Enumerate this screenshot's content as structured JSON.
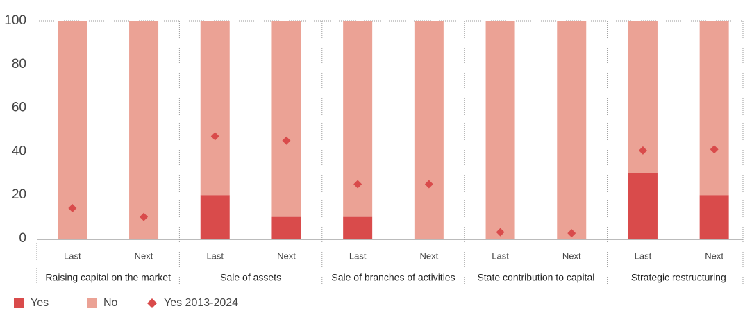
{
  "chart_data": {
    "type": "bar",
    "stacked": true,
    "categories": [
      "Last",
      "Next",
      "Last",
      "Next",
      "Last",
      "Next",
      "Last",
      "Next",
      "Last",
      "Next"
    ],
    "groups": [
      "Raising capital on the market",
      "Sale of assets",
      "Sale of branches of activities",
      "State contribution to capital",
      "Strategic restructuring"
    ],
    "series": [
      {
        "name": "Yes",
        "color": "#d94b4b",
        "values": [
          0,
          0,
          20,
          10,
          10,
          0,
          0,
          0,
          30,
          20
        ]
      },
      {
        "name": "No",
        "color": "#eba295",
        "values": [
          100,
          100,
          80,
          90,
          90,
          100,
          100,
          100,
          70,
          80
        ]
      },
      {
        "name": "Yes 2013-2024",
        "type": "scatter",
        "marker": "diamond",
        "color": "#d94b4b",
        "values": [
          14,
          10,
          47,
          45,
          25,
          25,
          3,
          2.5,
          40.5,
          41
        ]
      }
    ],
    "ylim": [
      0,
      100
    ],
    "yticks": [
      0,
      20,
      40,
      60,
      80,
      100
    ],
    "grid": false,
    "legend": "bottom"
  }
}
